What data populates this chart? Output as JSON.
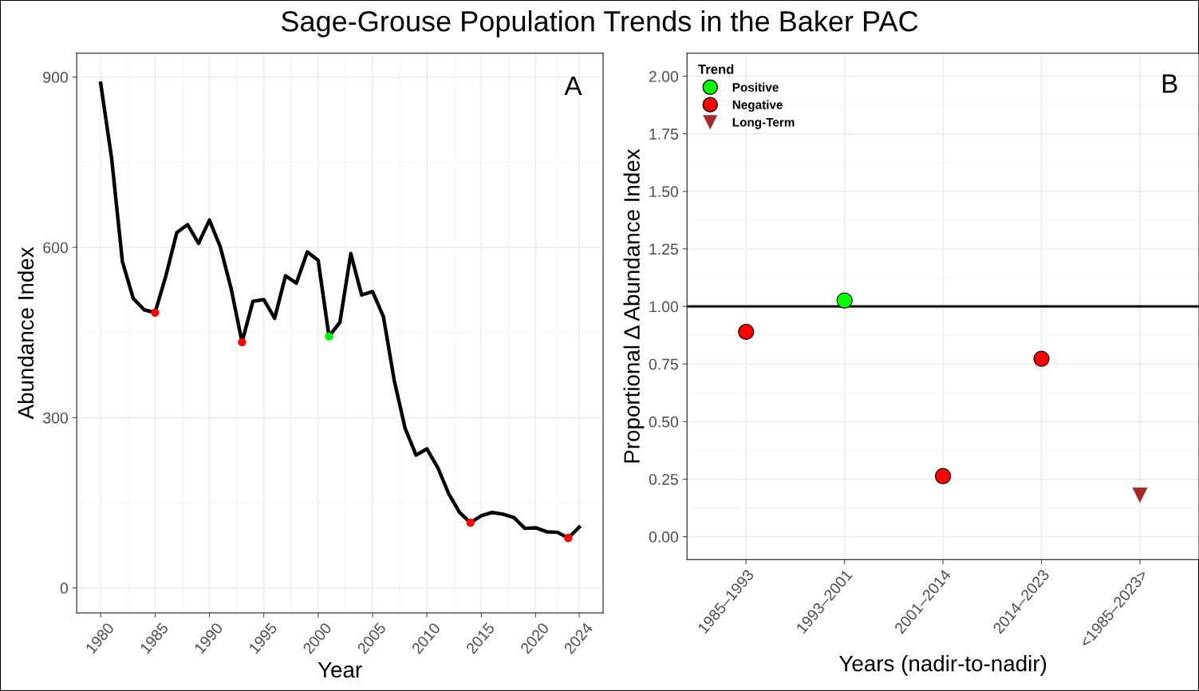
{
  "chart_data": [
    {
      "type": "line",
      "title": "Sage-Grouse Population Trends in the Baker PAC",
      "xlabel": "Year",
      "ylabel": "Abundance Index",
      "annotations": [
        "A"
      ],
      "xlim": [
        1977.8,
        2026.2
      ],
      "xticks": [
        1980,
        1985,
        1990,
        1995,
        2000,
        2005,
        2010,
        2015,
        2020,
        2024
      ],
      "ylim": [
        -44,
        942
      ],
      "yticks": [
        0,
        300,
        600,
        900
      ],
      "grid": true,
      "legend": false,
      "series": [
        {
          "type": "line",
          "color": "#000000",
          "marker": "none",
          "line_style": "solid",
          "x": [
            1980,
            1981,
            1982,
            1983,
            1984,
            1985,
            1986,
            1987,
            1988,
            1989,
            1990,
            1991,
            1992,
            1993,
            1994,
            1995,
            1996,
            1997,
            1998,
            1999,
            2000,
            2001,
            2002,
            2003,
            2004,
            2005,
            2006,
            2007,
            2008,
            2009,
            2010,
            2011,
            2012,
            2013,
            2014,
            2015,
            2016,
            2017,
            2018,
            2019,
            2020,
            2021,
            2022,
            2023,
            2024
          ],
          "values": [
            889,
            758,
            575,
            510,
            490,
            485,
            550,
            626,
            640,
            607,
            648,
            601,
            527,
            433,
            505,
            508,
            475,
            550,
            537,
            592,
            577,
            443,
            468,
            589,
            516,
            522,
            478,
            365,
            281,
            234,
            245,
            212,
            166,
            133,
            115,
            127,
            133,
            130,
            124,
            105,
            106,
            99,
            98,
            88,
            107
          ]
        },
        {
          "type": "scatter",
          "marker": "circle",
          "x": [
            1985,
            1993,
            2001,
            2014,
            2023
          ],
          "values": [
            485,
            433,
            443,
            115,
            88
          ],
          "colors": [
            "#ff0000",
            "#ff0000",
            "#00ee00",
            "#ff0000",
            "#ff0000"
          ]
        }
      ]
    },
    {
      "type": "scatter",
      "xlabel": "Years (nadir-to-nadir)",
      "ylabel": "Proportional Δ Abundance Index",
      "annotations": [
        "B"
      ],
      "legend_title": "Trend",
      "legend": "top left",
      "categories": [
        "1985–1993",
        "1993–2001",
        "2001–2014",
        "2014–2023",
        "<1985–2023>"
      ],
      "ylim": [
        -0.1,
        2.1
      ],
      "yticks": [
        {
          "value": 0,
          "label": "0.00"
        },
        {
          "value": 0.25,
          "label": "0.25"
        },
        {
          "value": 0.5,
          "label": "0.50"
        },
        {
          "value": 0.75,
          "label": "0.75"
        },
        {
          "value": 1,
          "label": "1.00"
        },
        {
          "value": 1.25,
          "label": "1.25"
        },
        {
          "value": 1.5,
          "label": "1.50"
        },
        {
          "value": 1.75,
          "label": "1.75"
        },
        {
          "value": 2,
          "label": "2.00"
        }
      ],
      "grid": true,
      "ref_lines": [
        {
          "axis": "y",
          "value": 1,
          "color": "#000000",
          "line_style": "solid"
        }
      ],
      "series": [
        {
          "name": "Positive",
          "color": "#00ff00",
          "marker": "circle",
          "values": [
            null,
            1.026,
            null,
            null,
            null
          ]
        },
        {
          "name": "Negative",
          "color": "#ff0000",
          "marker": "circle",
          "values": [
            0.89,
            null,
            0.263,
            0.773,
            null
          ]
        },
        {
          "name": "Long-Term",
          "color": "#a52a2a",
          "marker": "triangle",
          "values": [
            null,
            null,
            null,
            null,
            0.18
          ]
        }
      ]
    }
  ]
}
